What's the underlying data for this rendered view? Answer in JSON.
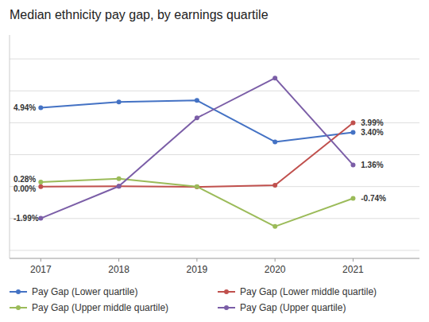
{
  "chart_data": {
    "type": "line",
    "title": "Median ethnicity pay gap, by earnings quartile",
    "x": [
      2017,
      2018,
      2019,
      2020,
      2021
    ],
    "series": [
      {
        "name": "Pay Gap (Lower quartile)",
        "color": "#4472C4",
        "marker": "circle",
        "values": [
          4.94,
          5.3,
          5.4,
          2.8,
          3.4
        ]
      },
      {
        "name": "Pay Gap (Lower middle quartile)",
        "color": "#C0504D",
        "marker": "circle",
        "values": [
          0.0,
          0.02,
          -0.02,
          0.08,
          3.99
        ]
      },
      {
        "name": "Pay Gap (Upper middle quartile)",
        "color": "#9BBB59",
        "marker": "circle",
        "values": [
          0.28,
          0.5,
          0.0,
          -2.5,
          -0.74
        ]
      },
      {
        "name": "Pay Gap (Upper quartile)",
        "color": "#7B5EA7",
        "marker": "circle",
        "values": [
          -1.99,
          0.02,
          4.3,
          6.8,
          1.36
        ]
      }
    ],
    "xlim": [
      2016.6,
      2021.85
    ],
    "xticks": [
      2017,
      2018,
      2019,
      2020,
      2021
    ],
    "ylim": [
      -4.5,
      9.5
    ],
    "yticks": [
      -4,
      -2,
      0,
      2,
      4,
      6,
      8
    ],
    "grid": true,
    "tick_labels": "x",
    "legend": "bottom",
    "annotations": [
      {
        "text": "4.94%",
        "x": 2016.65,
        "y": 4.94
      },
      {
        "text": "0.28%",
        "x": 2016.65,
        "y": 0.28
      },
      {
        "text": "0.00%",
        "x": 2016.65,
        "y": 0.0
      },
      {
        "text": "-1.99%",
        "x": 2016.65,
        "y": -1.99
      },
      {
        "text": "3.99%",
        "x": 2021.1,
        "y": 3.99
      },
      {
        "text": "3.40%",
        "x": 2021.1,
        "y": 3.4
      },
      {
        "text": "1.36%",
        "x": 2021.1,
        "y": 1.36
      },
      {
        "text": "-0.74%",
        "x": 2021.1,
        "y": -0.74
      }
    ]
  }
}
